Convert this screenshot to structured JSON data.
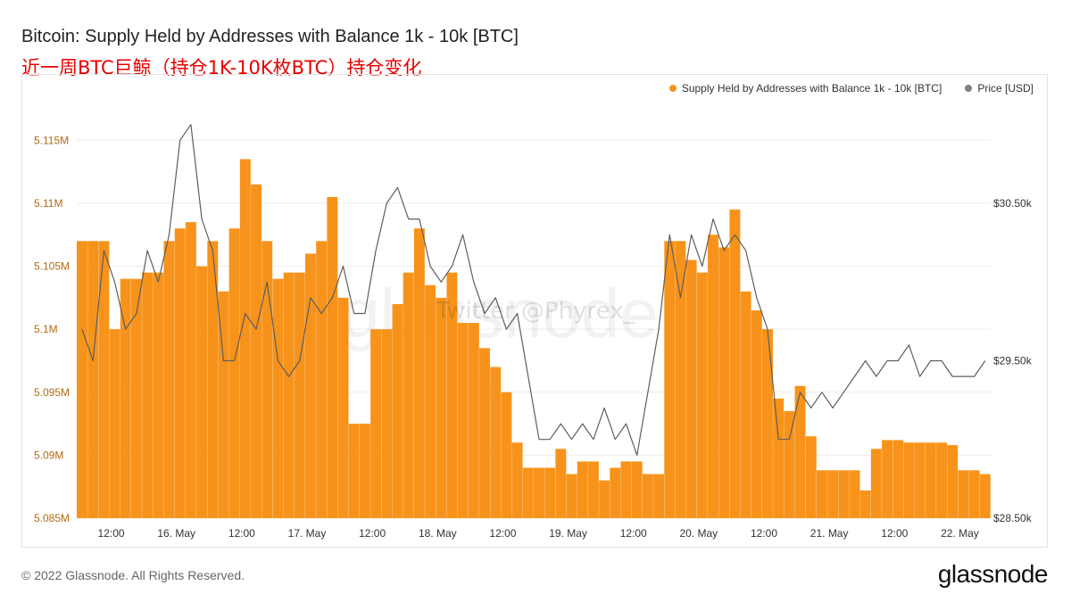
{
  "chart_data": {
    "type": "bar+line",
    "title": "Bitcoin: Supply Held by Addresses with Balance 1k - 10k [BTC]",
    "subtitle": "近一周BTC巨鲸（持仓1K-10K枚BTC）持仓变化",
    "watermark": "glassnode",
    "watermark_overlay": "Twitter @Phyrex_",
    "legend": [
      {
        "name": "Supply Held by Addresses with Balance 1k - 10k [BTC]",
        "color": "#f7931a"
      },
      {
        "name": "Price [USD]",
        "color": "#808080"
      }
    ],
    "x_tick_labels": [
      "12:00",
      "16. May",
      "12:00",
      "17. May",
      "12:00",
      "18. May",
      "12:00",
      "19. May",
      "12:00",
      "20. May",
      "12:00",
      "21. May",
      "12:00",
      "22. May"
    ],
    "y_left": {
      "ticks": [
        5.085,
        5.09,
        5.095,
        5.1,
        5.105,
        5.11,
        5.115
      ],
      "tick_labels": [
        "5.085M",
        "5.09M",
        "5.095M",
        "5.1M",
        "5.105M",
        "5.11M",
        "5.115M"
      ],
      "min": 5.085,
      "max": 5.1175,
      "unit": "M BTC"
    },
    "y_right": {
      "tick_values": [
        28500,
        29500,
        30500
      ],
      "tick_labels": [
        "$28.50k",
        "$29.50k",
        "$30.50k"
      ],
      "min": 28500,
      "max": 31100
    },
    "x_range": [
      -6,
      162
    ],
    "series": [
      {
        "name": "Supply Held by Addresses with Balance 1k - 10k [BTC]",
        "type": "bar",
        "color": "#f7931a",
        "x_hours": [
          -6,
          -4,
          -2,
          0,
          2,
          4,
          6,
          8,
          10,
          12,
          14,
          16,
          18,
          20,
          22,
          24,
          26,
          28,
          30,
          32,
          34,
          36,
          38,
          40,
          42,
          44,
          46,
          48,
          50,
          52,
          54,
          56,
          58,
          60,
          62,
          64,
          66,
          68,
          70,
          72,
          74,
          76,
          78,
          80,
          82,
          84,
          86,
          88,
          90,
          92,
          94,
          96,
          98,
          100,
          102,
          104,
          106,
          108,
          110,
          112,
          114,
          116,
          118,
          120,
          122,
          124,
          126,
          128,
          130,
          132,
          134,
          136,
          138,
          140,
          142,
          144,
          146,
          148,
          150,
          152,
          154,
          156,
          158,
          160
        ],
        "values": [
          5.107,
          5.107,
          5.107,
          5.1,
          5.104,
          5.104,
          5.1045,
          5.1045,
          5.107,
          5.108,
          5.1085,
          5.105,
          5.107,
          5.103,
          5.108,
          5.1135,
          5.1115,
          5.107,
          5.104,
          5.1045,
          5.1045,
          5.106,
          5.107,
          5.1105,
          5.1025,
          5.0925,
          5.0925,
          5.1,
          5.1,
          5.102,
          5.1045,
          5.108,
          5.1035,
          5.1025,
          5.1045,
          5.1005,
          5.1005,
          5.0985,
          5.097,
          5.095,
          5.091,
          5.089,
          5.089,
          5.089,
          5.0905,
          5.0885,
          5.0895,
          5.0895,
          5.088,
          5.089,
          5.0895,
          5.0895,
          5.0885,
          5.0885,
          5.107,
          5.107,
          5.1055,
          5.1045,
          5.1075,
          5.1065,
          5.1095,
          5.103,
          5.1015,
          5.1,
          5.0945,
          5.0935,
          5.0955,
          5.0915,
          5.0888,
          5.0888,
          5.0888,
          5.0888,
          5.0872,
          5.0905,
          5.0912,
          5.0912,
          5.091,
          5.091,
          5.091,
          5.091,
          5.0908,
          5.0888,
          5.0888,
          5.0885
        ]
      },
      {
        "name": "Price [USD]",
        "type": "line",
        "color": "#8a8a8a",
        "x_hours": [
          -6,
          -4,
          -2,
          0,
          2,
          4,
          6,
          8,
          10,
          12,
          14,
          16,
          18,
          20,
          22,
          24,
          26,
          28,
          30,
          32,
          34,
          36,
          38,
          40,
          42,
          44,
          46,
          48,
          50,
          52,
          54,
          56,
          58,
          60,
          62,
          64,
          66,
          68,
          70,
          72,
          74,
          76,
          78,
          80,
          82,
          84,
          86,
          88,
          90,
          92,
          94,
          96,
          98,
          100,
          102,
          104,
          106,
          108,
          110,
          112,
          114,
          116,
          118,
          120,
          122,
          124,
          126,
          128,
          130,
          132,
          134,
          136,
          138,
          140,
          142,
          144,
          146,
          148,
          150,
          152,
          154,
          156,
          158,
          160
        ],
        "values": [
          29700,
          29500,
          30200,
          30000,
          29700,
          29800,
          30200,
          30000,
          30300,
          30900,
          31000,
          30400,
          30200,
          29500,
          29500,
          29800,
          29700,
          30000,
          29500,
          29400,
          29500,
          29900,
          29800,
          29900,
          30100,
          29800,
          29800,
          30200,
          30500,
          30600,
          30400,
          30400,
          30100,
          30000,
          30100,
          30300,
          30000,
          29800,
          29900,
          29700,
          29800,
          29400,
          29000,
          29000,
          29100,
          29000,
          29100,
          29000,
          29200,
          29000,
          29100,
          28900,
          29300,
          29700,
          30300,
          29900,
          30300,
          30100,
          30400,
          30200,
          30300,
          30200,
          29900,
          29700,
          29000,
          29000,
          29300,
          29200,
          29300,
          29200,
          29300,
          29400,
          29500,
          29400,
          29500,
          29500,
          29600,
          29400,
          29500,
          29500,
          29400,
          29400,
          29400,
          29500
        ]
      }
    ],
    "grid": true
  },
  "footer": {
    "copyright": "© 2022 Glassnode. All Rights Reserved.",
    "brand": "glassnode"
  }
}
